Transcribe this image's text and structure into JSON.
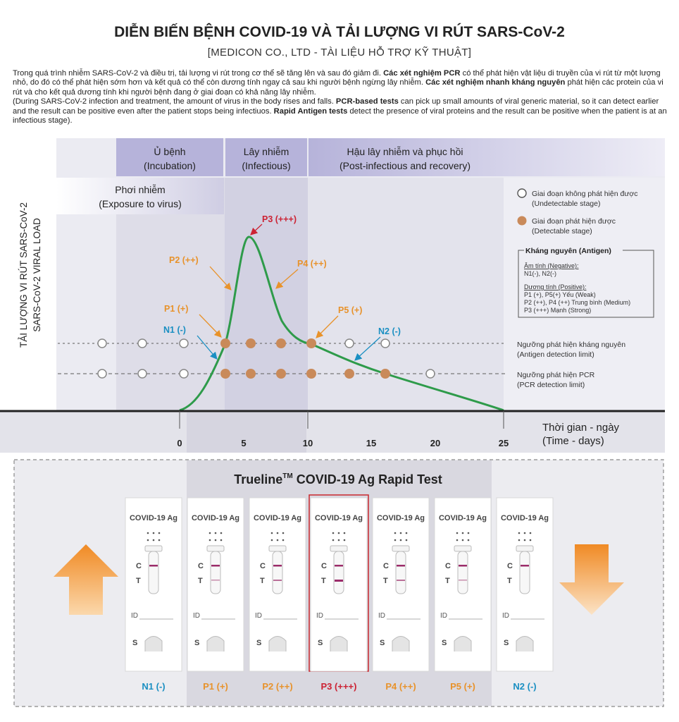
{
  "header": {
    "title": "DIỄN BIẾN BỆNH COVID-19 VÀ TẢI LƯỢNG VI RÚT SARS-CoV-2",
    "subtitle": "[MEDICON CO., LTD - TÀI LIỆU HỖ TRỢ KỸ THUẬT]"
  },
  "intro": {
    "vi_1": "Trong quá trình nhiễm SARS-CoV-2 và điều trị, tải lượng vi rút trong cơ thể sẽ tăng lên và sau đó giảm đi. ",
    "vi_pcr": "Các xét nghiệm PCR",
    "vi_2": " có thể phát hiện vật liệu di truyền của vi rút từ một lượng nhỏ, do đó có thể phát hiện sớm hơn và kết quả có thể còn dương tính ngay cả sau khi người bệnh ngừng lây nhiễm. ",
    "vi_ag": "Các xét nghiệm nhanh kháng nguyên",
    "vi_3": " phát hiện các protein của vi rút và cho kết quả dương tính khi người bệnh đang ở giai đoạn có khả năng lây nhiễm.",
    "en_1": "(During SARS-CoV-2 infection and treatment, the amount of virus in the body rises and falls. ",
    "en_pcr": "PCR-based tests",
    "en_2": " can pick up small amounts of viral generic material, so it can detect earlier and the result can be positive even after the patient stops being infectiuos. ",
    "en_ag": "Rapid Antigen tests",
    "en_3": " detect the presence of viral proteins and the result can be positive when the patient is at an infectious stage)."
  },
  "stages": {
    "incubation_vi": "Ủ bệnh",
    "incubation_en": "(Incubation)",
    "infectious_vi": "Lây nhiễm",
    "infectious_en": "(Infectious)",
    "post_vi": "Hậu lây nhiễm và phục hồi",
    "post_en": "(Post-infectious and recovery)",
    "exposure_vi": "Phơi nhiễm",
    "exposure_en": "(Exposure to virus)"
  },
  "y_axis": {
    "line1": "TẢI LƯỢNG VI RÚT SARS-CoV-2",
    "line2": "SARS-CoV-2 VIRAL LOAD"
  },
  "x_axis": {
    "ticks": [
      "0",
      "5",
      "10",
      "15",
      "20",
      "25"
    ],
    "label_vi": "Thời gian - ngày",
    "label_en": "(Time - days)"
  },
  "legend": {
    "undetectable_vi": "Giai đoạn không phát hiện được",
    "undetectable_en": "(Undetectable stage)",
    "detectable_vi": "Giai đoạn phát hiện được",
    "detectable_en": "(Detectable stage)",
    "antigen_title": "Kháng nguyên (Antigen)",
    "negative_title": "Âm tính (Negative):",
    "negative_items": "N1(-), N2(-)",
    "positive_title": "Dương tính (Positive):",
    "positive_1": "P1 (+), P5(+) Yếu (Weak)",
    "positive_2": "P2 (++), P4 (++) Trung bình (Medium)",
    "positive_3": "P3 (+++) Mạnh (Strong)"
  },
  "thresholds": {
    "antigen_vi": "Ngưỡng phát hiện kháng nguyên",
    "antigen_en": "(Antigen detection limit)",
    "pcr_vi": "Ngưỡng phát hiện PCR",
    "pcr_en": "(PCR detection limit)"
  },
  "callouts": {
    "p1": "P1 (+)",
    "p2": "P2 (++)",
    "p3": "P3 (+++)",
    "p4": "P4 (++)",
    "p5": "P5 (+)",
    "n1": "N1 (-)",
    "n2": "N2 (-)"
  },
  "kit": {
    "title_brand": "Trueline",
    "title_tm": "TM",
    "title_rest": " COVID-19 Ag Rapid Test",
    "cassette_label": "COVID-19 Ag",
    "c_mark": "C",
    "t_mark": "T",
    "id_mark": "ID",
    "s_mark": "S",
    "results": [
      {
        "label": "N1 (-)",
        "color": "#1a8fc2",
        "t_line": 0
      },
      {
        "label": "P1 (+)",
        "color": "#e8922a",
        "t_line": 0.25
      },
      {
        "label": "P2 (++)",
        "color": "#e8922a",
        "t_line": 0.5
      },
      {
        "label": "P3 (+++)",
        "color": "#cc2233",
        "t_line": 1
      },
      {
        "label": "P4 (++)",
        "color": "#e8922a",
        "t_line": 0.5
      },
      {
        "label": "P5 (+)",
        "color": "#e8922a",
        "t_line": 0.25
      },
      {
        "label": "N2 (-)",
        "color": "#1a8fc2",
        "t_line": 0
      }
    ]
  },
  "colors": {
    "curve": "#2e9b4a",
    "detectable_dot": "#c98a5a",
    "positive_orange": "#e8922a",
    "negative_blue": "#1a8fc2",
    "strong_red": "#cc2233",
    "stage_band": "#b6b3da"
  }
}
